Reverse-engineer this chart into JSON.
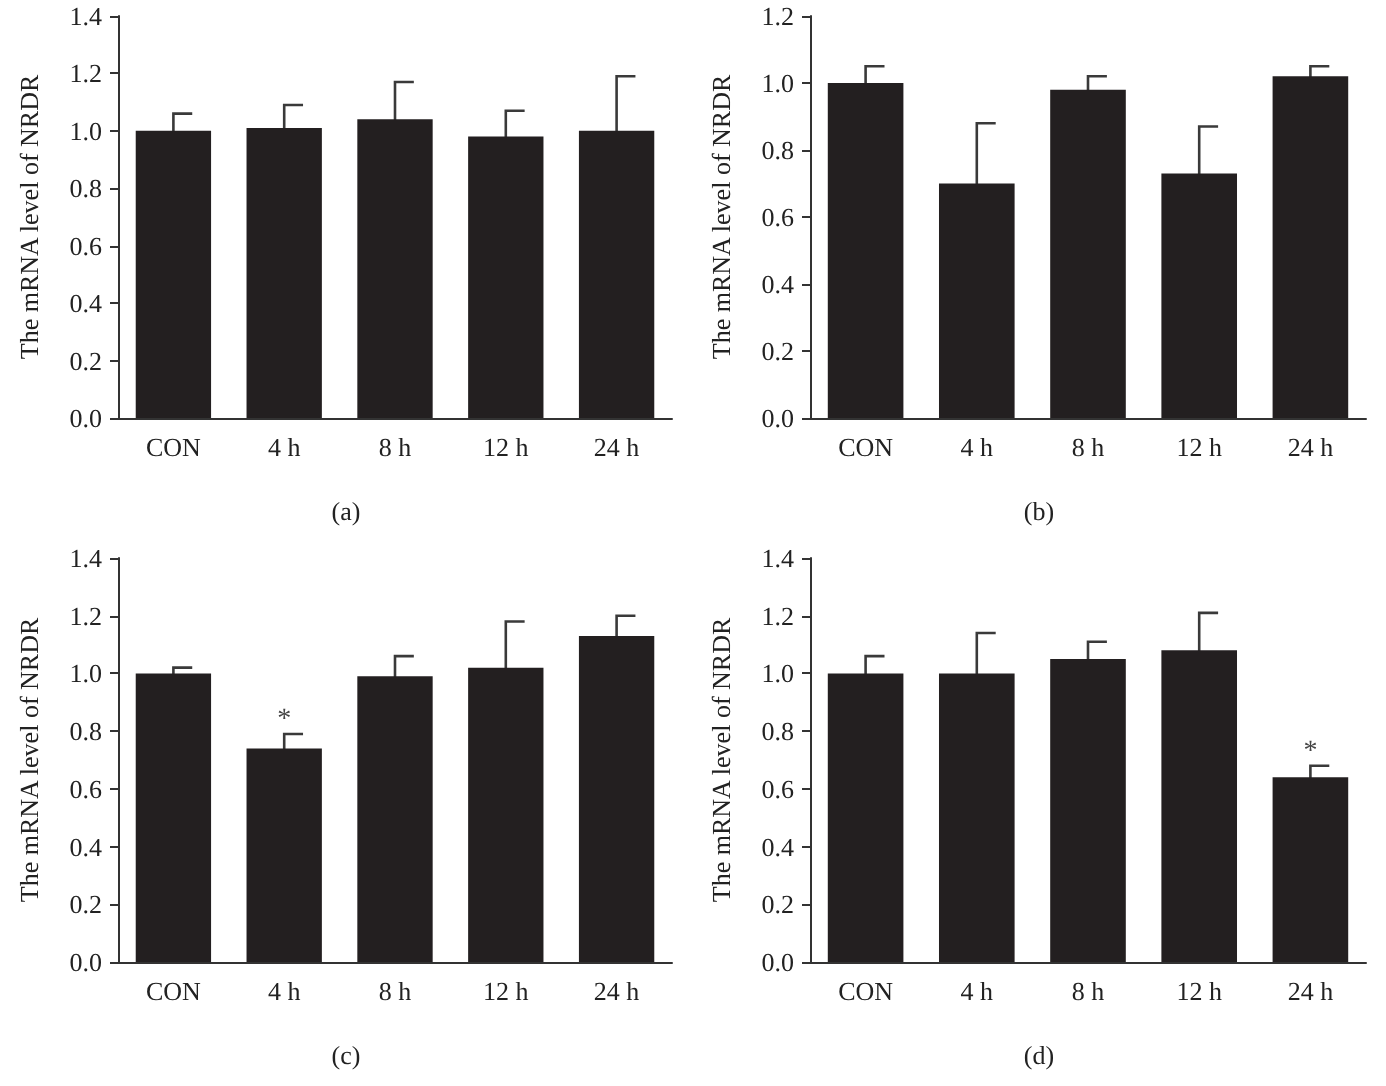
{
  "chart_data": [
    {
      "type": "bar",
      "ylabel": "The mRNA level of NRDR",
      "categories": [
        "CON",
        "4 h",
        "8 h",
        "12 h",
        "24 h"
      ],
      "color": "#231f20",
      "values": [
        1.0,
        1.01,
        1.04,
        0.98,
        1.0
      ],
      "errors": [
        0.06,
        0.08,
        0.13,
        0.09,
        0.19
      ],
      "ylim": [
        0,
        1.4
      ],
      "yticks": [
        {
          "value": 0,
          "label": "0.0"
        },
        {
          "value": 0.2,
          "label": "0.2"
        },
        {
          "value": 0.4,
          "label": "0.4"
        },
        {
          "value": 0.6,
          "label": "0.6"
        },
        {
          "value": 0.8,
          "label": "0.8"
        },
        {
          "value": 1.0,
          "label": "1.0"
        },
        {
          "value": 1.2,
          "label": "1.2"
        },
        {
          "value": 1.4,
          "label": "1.4"
        }
      ],
      "annotations": [
        "(a)"
      ]
    },
    {
      "type": "bar",
      "ylabel": "The mRNA level of NRDR",
      "categories": [
        "CON",
        "4 h",
        "8 h",
        "12 h",
        "24 h"
      ],
      "color": "#231f20",
      "values": [
        1.0,
        0.7,
        0.98,
        0.73,
        1.02
      ],
      "errors": [
        0.05,
        0.18,
        0.04,
        0.14,
        0.03
      ],
      "ylim": [
        0,
        1.2
      ],
      "yticks": [
        {
          "value": 0,
          "label": "0.0"
        },
        {
          "value": 0.2,
          "label": "0.2"
        },
        {
          "value": 0.4,
          "label": "0.4"
        },
        {
          "value": 0.6,
          "label": "0.6"
        },
        {
          "value": 0.8,
          "label": "0.8"
        },
        {
          "value": 1.0,
          "label": "1.0"
        },
        {
          "value": 1.2,
          "label": "1.2"
        }
      ],
      "annotations": [
        "(b)"
      ]
    },
    {
      "type": "bar",
      "ylabel": "The mRNA level of NRDR",
      "categories": [
        "CON",
        "4 h",
        "8 h",
        "12 h",
        "24 h"
      ],
      "color": "#231f20",
      "values": [
        1.0,
        0.74,
        0.99,
        1.02,
        1.13
      ],
      "errors": [
        0.02,
        0.05,
        0.07,
        0.16,
        0.07
      ],
      "ylim": [
        0,
        1.4
      ],
      "yticks": [
        {
          "value": 0,
          "label": "0.0"
        },
        {
          "value": 0.2,
          "label": "0.2"
        },
        {
          "value": 0.4,
          "label": "0.4"
        },
        {
          "value": 0.6,
          "label": "0.6"
        },
        {
          "value": 0.8,
          "label": "0.8"
        },
        {
          "value": 1.0,
          "label": "1.0"
        },
        {
          "value": 1.2,
          "label": "1.2"
        },
        {
          "value": 1.4,
          "label": "1.4"
        }
      ],
      "annotations": [
        {
          "text": "*",
          "x": "4 h",
          "y": 0.79
        },
        "(c)"
      ]
    },
    {
      "type": "bar",
      "ylabel": "The mRNA level of NRDR",
      "categories": [
        "CON",
        "4 h",
        "8 h",
        "12 h",
        "24 h"
      ],
      "color": "#231f20",
      "values": [
        1.0,
        1.0,
        1.05,
        1.08,
        0.64
      ],
      "errors": [
        0.06,
        0.14,
        0.06,
        0.13,
        0.04
      ],
      "ylim": [
        0,
        1.4
      ],
      "yticks": [
        {
          "value": 0,
          "label": "0.0"
        },
        {
          "value": 0.2,
          "label": "0.2"
        },
        {
          "value": 0.4,
          "label": "0.4"
        },
        {
          "value": 0.6,
          "label": "0.6"
        },
        {
          "value": 0.8,
          "label": "0.8"
        },
        {
          "value": 1.0,
          "label": "1.0"
        },
        {
          "value": 1.2,
          "label": "1.2"
        },
        {
          "value": 1.4,
          "label": "1.4"
        }
      ],
      "annotations": [
        {
          "text": "*",
          "x": "24 h",
          "y": 0.68
        },
        "(d)"
      ]
    }
  ]
}
